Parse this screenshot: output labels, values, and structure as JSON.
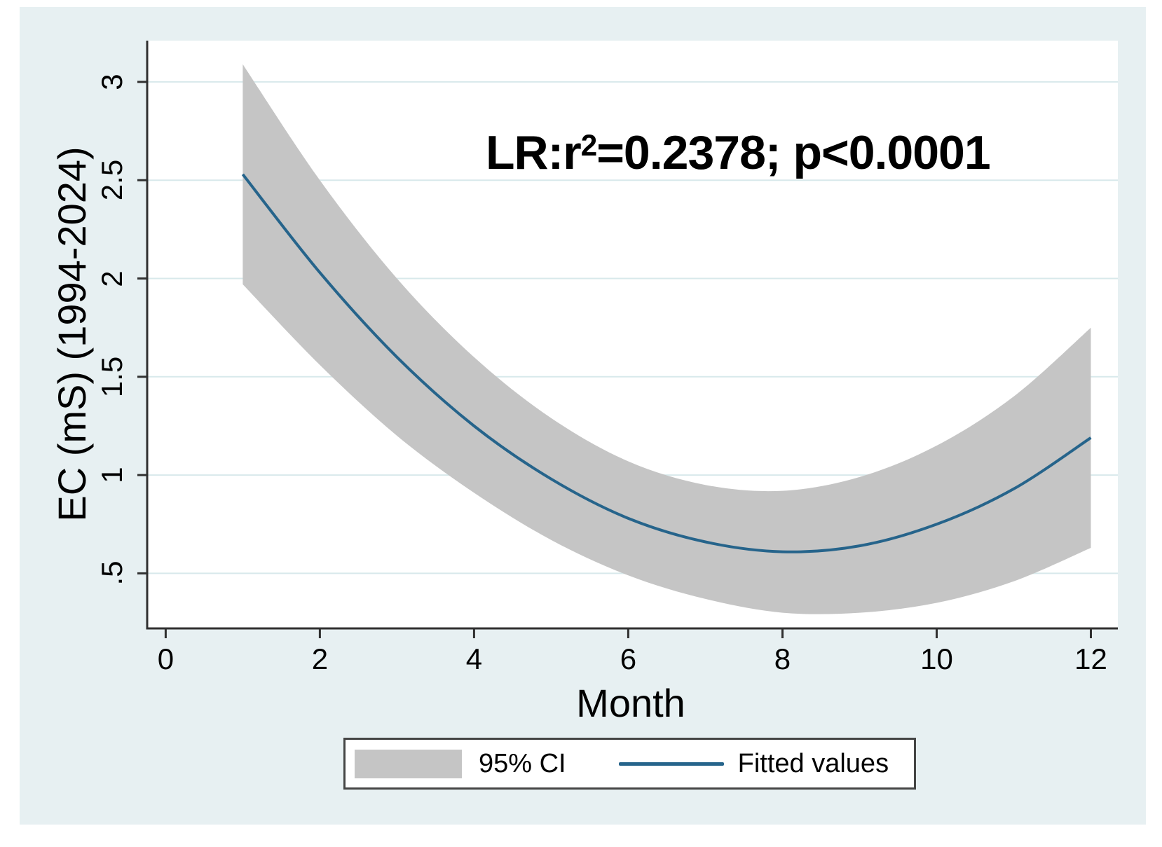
{
  "figure": {
    "background": "#e7f0f2",
    "plot_background": "#ffffff",
    "grid_color": "#d8e9eb",
    "axis_color": "#303030",
    "text_color": "#000000"
  },
  "annotation": {
    "full_text": "LR:r²=0.2378; p<0.0001",
    "prefix": "LR:r",
    "sup": "2",
    "suffix": "=0.2378; p<0.0001"
  },
  "legend": {
    "ci_label": "95% CI",
    "fitted_label": "Fitted values"
  },
  "chart_data": {
    "type": "line",
    "title": "",
    "xlabel": "Month",
    "ylabel": "EC (mS) (1994-2024)",
    "annotation": "LR:r²=0.2378; p<0.0001",
    "x": [
      1,
      2,
      3,
      4,
      5,
      6,
      7,
      8,
      9,
      10,
      11,
      12
    ],
    "series": [
      {
        "name": "95% CI",
        "type": "band",
        "color": "#c5c5c5",
        "upper": [
          3.09,
          2.5,
          2.0,
          1.6,
          1.29,
          1.07,
          0.95,
          0.92,
          0.99,
          1.15,
          1.4,
          1.75
        ],
        "lower": [
          1.97,
          1.56,
          1.2,
          0.91,
          0.67,
          0.49,
          0.37,
          0.3,
          0.3,
          0.35,
          0.46,
          0.63
        ]
      },
      {
        "name": "Fitted values",
        "type": "line",
        "color": "#26648b",
        "values": [
          2.53,
          2.03,
          1.6,
          1.25,
          0.98,
          0.78,
          0.66,
          0.61,
          0.64,
          0.75,
          0.93,
          1.19
        ]
      }
    ],
    "xticks": {
      "values": [
        0,
        2,
        4,
        6,
        8,
        10,
        12
      ],
      "labels": [
        "0",
        "2",
        "4",
        "6",
        "8",
        "10",
        "12"
      ]
    },
    "yticks": {
      "values": [
        0.5,
        1,
        1.5,
        2,
        2.5,
        3
      ],
      "labels": [
        ".5",
        "1",
        "1.5",
        "2",
        "2.5",
        "3"
      ]
    },
    "xlim": [
      -0.24,
      12.35
    ],
    "ylim": [
      0.22,
      3.21
    ],
    "grid": "horizontal",
    "legend_position": "bottom"
  }
}
